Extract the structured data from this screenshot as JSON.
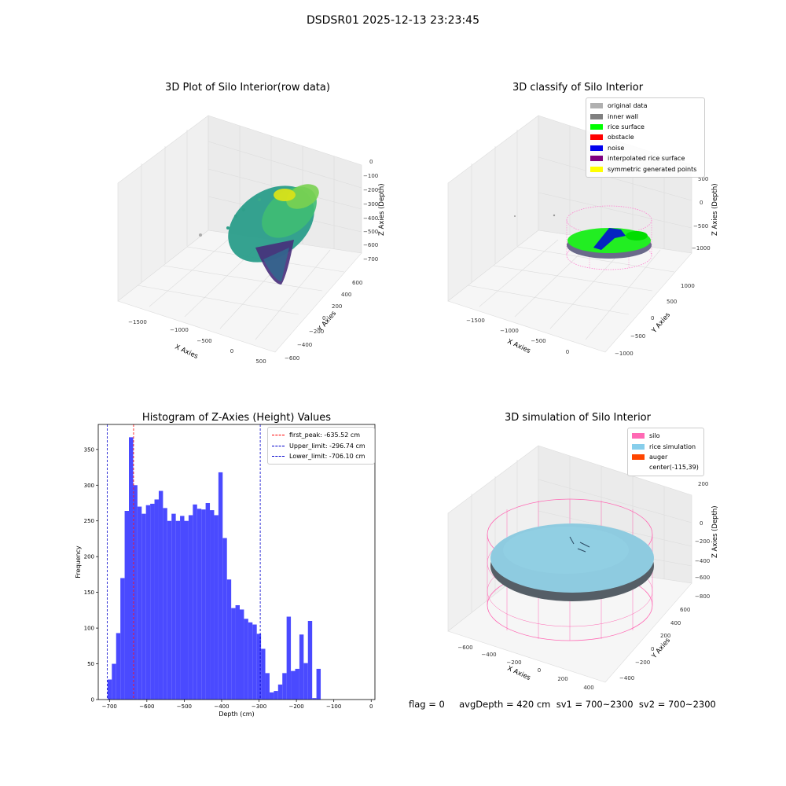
{
  "suptitle": "DSDSR01 2025-12-13 23:23:45",
  "colors": {
    "viridis_low": "#440154",
    "viridis_mid": "#21918c",
    "viridis_high": "#fde725",
    "hist_bar": "#4a4aff",
    "peak_line": "#ff0000",
    "limit_line": "#0000cc",
    "silo_pink": "#ff69b4",
    "rice_blue": "#87ceeb",
    "auger_orange": "#ff4500",
    "rice_green": "#00ff00"
  },
  "plot1": {
    "title": "3D Plot of Silo Interior(row data)",
    "xlabel": "X Axies",
    "ylabel": "Y Axies",
    "zlabel": "Z Axies (Depth)",
    "xticks": [
      "−1500",
      "−1000",
      "−500",
      "0",
      "500"
    ],
    "yticks": [
      "−600",
      "−400",
      "−200",
      "0",
      "200",
      "400",
      "600"
    ],
    "zticks": [
      "0",
      "−100",
      "−200",
      "−300",
      "−400",
      "−500",
      "−600",
      "−700"
    ]
  },
  "plot2": {
    "title": "3D classify of Silo Interior",
    "xlabel": "X Axies",
    "ylabel": "Y Axies",
    "zlabel": "Z Axies (Depth)",
    "xticks": [
      "−1500",
      "−1000",
      "−500",
      "0"
    ],
    "yticks": [
      "−1000",
      "−500",
      "0",
      "500",
      "1000"
    ],
    "zticks": [
      "500",
      "0",
      "−500",
      "−1000"
    ],
    "legend": [
      {
        "label": "original data",
        "color": "#b0b0b0"
      },
      {
        "label": "inner wall",
        "color": "#808080"
      },
      {
        "label": "rice surface",
        "color": "#00ff00"
      },
      {
        "label": "obstacle",
        "color": "#ff0000"
      },
      {
        "label": "noise",
        "color": "#0000ee"
      },
      {
        "label": "interpolated rice surface",
        "color": "#800080"
      },
      {
        "label": "symmetric generated points",
        "color": "#ffff00"
      }
    ]
  },
  "chart_data": {
    "type": "bar",
    "title": "Histogram of Z-Axies (Height) Values",
    "xlabel": "Depth (cm)",
    "ylabel": "Frequency",
    "xlim": [
      -730,
      10
    ],
    "ylim": [
      0,
      385
    ],
    "xticks": [
      -700,
      -600,
      -500,
      -400,
      -300,
      -200,
      -100,
      0
    ],
    "yticks": [
      0,
      50,
      100,
      150,
      200,
      250,
      300,
      350
    ],
    "bin_start": -705,
    "bin_width": 11.4,
    "values": [
      28,
      50,
      93,
      170,
      264,
      367,
      300,
      270,
      260,
      272,
      274,
      280,
      292,
      268,
      250,
      260,
      250,
      257,
      250,
      258,
      273,
      267,
      266,
      275,
      265,
      258,
      318,
      226,
      168,
      128,
      132,
      126,
      113,
      108,
      105,
      92,
      71,
      37,
      10,
      12,
      21,
      37,
      116,
      40,
      43,
      91,
      51,
      110,
      2,
      43
    ],
    "lines": [
      {
        "label": "first_peak: -635.52 cm",
        "x": -635.52,
        "color": "#ff0000"
      },
      {
        "label": "Upper_limit: -296.74 cm",
        "x": -296.74,
        "color": "#0000cc"
      },
      {
        "label": "Lower_limit: -706.10 cm",
        "x": -706.1,
        "color": "#0000cc"
      }
    ]
  },
  "plot4": {
    "title": "3D simulation of Silo Interior",
    "xlabel": "X Axies",
    "ylabel": "Y Axies",
    "zlabel": "Z Axies (Depth)",
    "xticks": [
      "−600",
      "−400",
      "−200",
      "0",
      "200",
      "400"
    ],
    "yticks": [
      "−400",
      "−200",
      "0",
      "200",
      "400",
      "600"
    ],
    "zticks": [
      "200",
      "0",
      "−200",
      "−400",
      "−600",
      "−800"
    ],
    "legend": [
      {
        "label": "silo",
        "color": "#ff69b4"
      },
      {
        "label": "rice simulation",
        "color": "#87ceeb"
      },
      {
        "label": "auger",
        "color": "#ff4500"
      },
      {
        "label": "center(-115,39)",
        "color": ""
      }
    ]
  },
  "status": "flag = 0     avgDepth = 420 cm  sv1 = 700~2300  sv2 = 700~2300"
}
